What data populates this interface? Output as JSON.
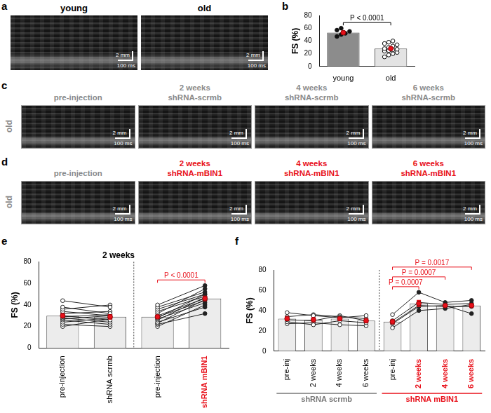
{
  "figure": {
    "image_panels": [
      {
        "letter": "a",
        "images": [
          {
            "title": [
              "young"
            ],
            "color": "#000000",
            "scale_y": "2 mm",
            "scale_x": "100 ms"
          },
          {
            "title": [
              "old"
            ],
            "color": "#000000",
            "scale_y": "2 mm",
            "scale_x": "100 ms"
          }
        ]
      },
      {
        "letter": "c",
        "row_label": "old",
        "images": [
          {
            "title": [
              "pre-injection"
            ],
            "color": "#8a8a8a",
            "scale_y": "2 mm",
            "scale_x": "100 ms"
          },
          {
            "title": [
              "2 weeks",
              "shRNA-scrmb"
            ],
            "color": "#8a8a8a",
            "scale_y": "2 mm",
            "scale_x": "100 ms"
          },
          {
            "title": [
              "4 weeks",
              "shRNA-scrmb"
            ],
            "color": "#8a8a8a",
            "scale_y": "2 mm",
            "scale_x": "100 ms"
          },
          {
            "title": [
              "6 weeks",
              "shRNA-scrmb"
            ],
            "color": "#8a8a8a",
            "scale_y": "2 mm",
            "scale_x": "100 ms"
          }
        ]
      },
      {
        "letter": "d",
        "row_label": "old",
        "images": [
          {
            "title": [
              "pre-injection"
            ],
            "color": "#8a8a8a",
            "scale_y": "2 mm",
            "scale_x": "100 ms"
          },
          {
            "title": [
              "2 weeks",
              "shRNA-mBIN1"
            ],
            "color": "#e8101a",
            "scale_y": "2 mm",
            "scale_x": "100 ms"
          },
          {
            "title": [
              "4 weeks",
              "shRNA-mBIN1"
            ],
            "color": "#e8101a",
            "scale_y": "2 mm",
            "scale_x": "100 ms"
          },
          {
            "title": [
              "6 weeks",
              "shRNA-mBIN1"
            ],
            "color": "#e8101a",
            "scale_y": "2 mm",
            "scale_x": "100 ms"
          }
        ]
      }
    ]
  },
  "chart_data": [
    {
      "panel": "b",
      "type": "bar",
      "categories": [
        "young",
        "old"
      ],
      "values": [
        53,
        28
      ],
      "error": [
        2.5,
        2
      ],
      "colors": [
        "#8c8c8c",
        "#e3e3e3"
      ],
      "points": [
        [
          47,
          50,
          52,
          55,
          57,
          60
        ],
        [
          15,
          18,
          20,
          22,
          24,
          25,
          26,
          27,
          28,
          30,
          32,
          34,
          36,
          38,
          40
        ]
      ],
      "y_label": "FS (%)",
      "ylim": [
        0,
        80
      ],
      "yticks": [
        0,
        20,
        40,
        60,
        80
      ],
      "grid": false,
      "annotations": [
        {
          "text": "P < 0.0001",
          "between": [
            0,
            1
          ],
          "color": "#000000"
        }
      ]
    },
    {
      "panel": "e",
      "type": "bar",
      "title": "2 weeks",
      "categories": [
        "pre-injection",
        "shRNA scrmb",
        "pre-injection",
        "shRNA mBIN1"
      ],
      "values": [
        30,
        29,
        29,
        46
      ],
      "error": [
        2,
        2,
        1.5,
        2
      ],
      "color": "#ececec",
      "individuals": [
        {
          "categories": [
            0,
            1
          ],
          "values": [
            [
              44,
              38
            ],
            [
              38,
              32
            ],
            [
              36,
              40
            ],
            [
              34,
              30
            ],
            [
              32,
              34
            ],
            [
              30,
              26
            ],
            [
              29,
              31
            ],
            [
              28,
              24
            ],
            [
              27,
              30
            ],
            [
              26,
              22
            ],
            [
              24,
              28
            ],
            [
              22,
              20
            ],
            [
              20,
              27
            ]
          ]
        },
        {
          "categories": [
            2,
            3
          ],
          "values": [
            [
              40,
              58
            ],
            [
              38,
              52
            ],
            [
              36,
              50
            ],
            [
              34,
              48
            ],
            [
              32,
              55
            ],
            [
              30,
              46
            ],
            [
              29,
              44
            ],
            [
              28,
              50
            ],
            [
              27,
              42
            ],
            [
              26,
              47
            ],
            [
              24,
              38
            ],
            [
              23,
              45
            ],
            [
              22,
              32
            ],
            [
              20,
              40
            ]
          ]
        }
      ],
      "y_label": "FS (%)",
      "ylim": [
        0,
        80
      ],
      "yticks": [
        0,
        20,
        40,
        60,
        80
      ],
      "grid": false,
      "annotations": [
        {
          "text": "P < 0.0001",
          "between": [
            2,
            3
          ],
          "color": "#e8101a"
        }
      ]
    },
    {
      "panel": "f",
      "type": "bar",
      "categories": [
        "pre-inj",
        "2 weeks",
        "4 weeks",
        "6 weeks",
        "pre-inj",
        "2 weeks",
        "4 weeks",
        "6 weeks"
      ],
      "values": [
        32,
        31,
        32,
        30,
        29,
        47,
        45,
        45
      ],
      "error": [
        2,
        2,
        1.5,
        2,
        2,
        3,
        1,
        2
      ],
      "color": "#ececec",
      "individuals": [
        {
          "categories": [
            0,
            1,
            2,
            3
          ],
          "values": [
            [
              38,
              35,
              33,
              35
            ],
            [
              34,
              36,
              34,
              32
            ],
            [
              31,
              30,
              35,
              30
            ],
            [
              29,
              26,
              30,
              28
            ],
            [
              27,
              28,
              26,
              25
            ]
          ]
        },
        {
          "categories": [
            4,
            5,
            6,
            7
          ],
          "values": [
            [
              36,
              58,
              48,
              50
            ],
            [
              30,
              48,
              46,
              47
            ],
            [
              28,
              45,
              44,
              44
            ],
            [
              27,
              44,
              45,
              37
            ],
            [
              23,
              40,
              42,
              46
            ]
          ]
        }
      ],
      "groups": [
        {
          "name": "shRNA scrmb",
          "categories": [
            0,
            1,
            2,
            3
          ],
          "color": "#777777"
        },
        {
          "name": "shRNA mBIN1",
          "categories": [
            4,
            5,
            6,
            7
          ],
          "color": "#e8101a"
        }
      ],
      "y_label": "FS (%)",
      "ylim": [
        0,
        80
      ],
      "yticks": [
        0,
        20,
        40,
        60,
        80
      ],
      "grid": false,
      "annotations": [
        {
          "text": "P = 0.0007",
          "between": [
            4,
            5
          ],
          "color": "#e8101a"
        },
        {
          "text": "P = 0.0007",
          "between": [
            4,
            6
          ],
          "color": "#e8101a"
        },
        {
          "text": "P = 0.0017",
          "between": [
            4,
            7
          ],
          "color": "#e8101a"
        }
      ]
    }
  ]
}
